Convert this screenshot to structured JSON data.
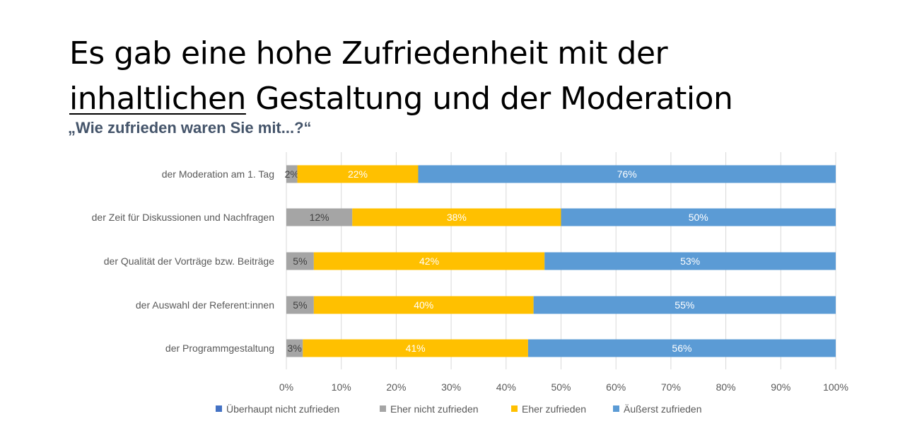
{
  "slide": {
    "title_line1": "Es gab eine hohe Zufriedenheit mit der",
    "title_line2_underlined": "inhaltlichen",
    "title_line2_rest": " Gestaltung und der Moderation",
    "subtitle": "„Wie zufrieden waren Sie mit...?“"
  },
  "chart_data": {
    "type": "bar",
    "orientation": "horizontal",
    "stacked": "percent",
    "categories": [
      "der Moderation am 1. Tag",
      "der Zeit für Diskussionen und Nachfragen",
      "der Qualität der Vorträge bzw. Beiträge",
      "der Auswahl der Referent:innen",
      "der Programmgestaltung"
    ],
    "series": [
      {
        "name": "Überhaupt nicht zufrieden",
        "color": "#4472c4",
        "values": [
          0,
          0,
          0,
          0,
          0
        ],
        "labels": [
          "",
          "",
          "",
          "",
          ""
        ]
      },
      {
        "name": "Eher nicht zufrieden",
        "color": "#a5a5a5",
        "label_color": "#404040",
        "values": [
          2,
          12,
          5,
          5,
          3
        ],
        "labels": [
          "2%",
          "12%",
          "5%",
          "5%",
          "3%"
        ]
      },
      {
        "name": "Eher zufrieden",
        "color": "#ffc000",
        "label_color": "#ffffff",
        "values": [
          22,
          38,
          42,
          40,
          41
        ],
        "labels": [
          "22%",
          "38%",
          "42%",
          "40%",
          "41%"
        ]
      },
      {
        "name": "Äußerst zufrieden",
        "color": "#5b9bd5",
        "label_color": "#ffffff",
        "values": [
          76,
          50,
          53,
          55,
          56
        ],
        "labels": [
          "76%",
          "50%",
          "53%",
          "55%",
          "56%"
        ]
      }
    ],
    "x_ticks": [
      "0%",
      "10%",
      "20%",
      "30%",
      "40%",
      "50%",
      "60%",
      "70%",
      "80%",
      "90%",
      "100%"
    ],
    "xlim": [
      0,
      100
    ],
    "grid": true,
    "legend": "bottom"
  }
}
